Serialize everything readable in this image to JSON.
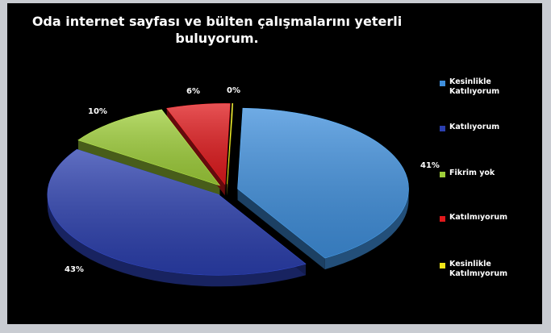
{
  "chart_data": {
    "type": "pie",
    "title": "Oda internet sayfası ve bülten çalışmalarını yeterli buluyorum.",
    "title_lines": [
      "Oda internet sayfası ve bülten çalışmalarını yeterli",
      "buluyorum."
    ],
    "exploded": true,
    "style": "3d",
    "legend_position": "right",
    "slices": [
      {
        "label": "Kesinlikle Katılıyorum",
        "value": 41,
        "value_label": "41%",
        "color": "#3f8fdc"
      },
      {
        "label": "Katılıyorum",
        "value": 43,
        "value_label": "43%",
        "color": "#2b3fae"
      },
      {
        "label": "Fikrim yok",
        "value": 10,
        "value_label": "10%",
        "color": "#9fcf3a"
      },
      {
        "label": "Katılmıyorum",
        "value": 6,
        "value_label": "6%",
        "color": "#e0191c"
      },
      {
        "label": "Kesinlikle Katılmıyorum",
        "value": 0,
        "value_label": "0%",
        "color": "#f2e619"
      }
    ]
  }
}
